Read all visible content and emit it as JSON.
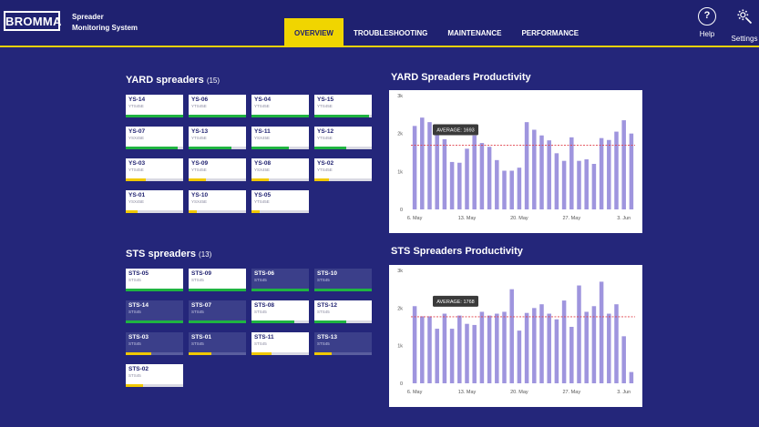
{
  "header": {
    "logo": "BROMMA",
    "app_title_line1": "Spreader",
    "app_title_line2": "Monitoring System",
    "tabs": [
      {
        "label": "OVERVIEW",
        "active": true
      },
      {
        "label": "TROUBLESHOOTING",
        "active": false
      },
      {
        "label": "MAINTENANCE",
        "active": false
      },
      {
        "label": "PERFORMANCE",
        "active": false
      }
    ],
    "help_label": "Help",
    "settings_label": "Settings",
    "help_icon": "question-mark-icon",
    "settings_icon": "gear-icon"
  },
  "colors": {
    "background": "#24267a",
    "accent": "#f0d500",
    "green": "#1fb441",
    "yellow": "#f0c800",
    "bar": "#8e83d8",
    "average_line": "#e0404a"
  },
  "yard": {
    "title": "YARD spreaders",
    "count": "(15)",
    "spreaders": [
      {
        "id": "YS-14",
        "model": "YTS45E",
        "level": 1.0,
        "status": "green",
        "dark": false
      },
      {
        "id": "YS-06",
        "model": "YTS45E",
        "level": 1.0,
        "status": "green",
        "dark": false
      },
      {
        "id": "YS-04",
        "model": "YTS45E",
        "level": 1.0,
        "status": "green",
        "dark": false
      },
      {
        "id": "YS-15",
        "model": "YTS45E",
        "level": 0.95,
        "status": "green",
        "dark": false
      },
      {
        "id": "YS-07",
        "model": "YSX45E",
        "level": 0.9,
        "status": "green",
        "dark": false
      },
      {
        "id": "YS-13",
        "model": "YTS45E",
        "level": 0.75,
        "status": "green",
        "dark": false
      },
      {
        "id": "YS-11",
        "model": "YSX45E",
        "level": 0.65,
        "status": "green",
        "dark": false
      },
      {
        "id": "YS-12",
        "model": "YTS45E",
        "level": 0.55,
        "status": "green",
        "dark": false
      },
      {
        "id": "YS-03",
        "model": "YTS45E",
        "level": 0.35,
        "status": "yellow",
        "dark": false
      },
      {
        "id": "YS-09",
        "model": "YTS45E",
        "level": 0.3,
        "status": "yellow",
        "dark": false
      },
      {
        "id": "YS-08",
        "model": "YSX45E",
        "level": 0.3,
        "status": "yellow",
        "dark": false
      },
      {
        "id": "YS-02",
        "model": "YTS45E",
        "level": 0.25,
        "status": "yellow",
        "dark": false
      },
      {
        "id": "YS-01",
        "model": "YSX45E",
        "level": 0.2,
        "status": "yellow",
        "dark": false
      },
      {
        "id": "YS-10",
        "model": "YSX45E",
        "level": 0.15,
        "status": "yellow",
        "dark": false
      },
      {
        "id": "YS-05",
        "model": "YTS45E",
        "level": 0.15,
        "status": "yellow",
        "dark": false
      }
    ]
  },
  "sts": {
    "title": "STS spreaders",
    "count": "(13)",
    "spreaders": [
      {
        "id": "STS-05",
        "model": "STS45",
        "level": 1.0,
        "status": "green",
        "dark": false
      },
      {
        "id": "STS-09",
        "model": "STS45",
        "level": 1.0,
        "status": "green",
        "dark": false
      },
      {
        "id": "STS-06",
        "model": "STS45",
        "level": 1.0,
        "status": "green",
        "dark": true
      },
      {
        "id": "STS-10",
        "model": "STS45",
        "level": 1.0,
        "status": "green",
        "dark": true
      },
      {
        "id": "STS-14",
        "model": "STS45",
        "level": 1.0,
        "status": "green",
        "dark": true
      },
      {
        "id": "STS-07",
        "model": "STS45",
        "level": 1.0,
        "status": "green",
        "dark": true
      },
      {
        "id": "STS-08",
        "model": "STS45",
        "level": 0.75,
        "status": "green",
        "dark": false
      },
      {
        "id": "STS-12",
        "model": "STS45",
        "level": 0.55,
        "status": "green",
        "dark": false
      },
      {
        "id": "STS-03",
        "model": "STS45",
        "level": 0.45,
        "status": "yellow",
        "dark": true
      },
      {
        "id": "STS-01",
        "model": "STS45",
        "level": 0.4,
        "status": "yellow",
        "dark": true
      },
      {
        "id": "STS-11",
        "model": "STS45",
        "level": 0.35,
        "status": "yellow",
        "dark": false
      },
      {
        "id": "STS-13",
        "model": "STS45",
        "level": 0.3,
        "status": "yellow",
        "dark": true
      },
      {
        "id": "STS-02",
        "model": "STS45",
        "level": 0.3,
        "status": "yellow",
        "dark": false
      }
    ]
  },
  "chart_data": [
    {
      "type": "bar",
      "title": "YARD Spreaders Productivity",
      "xlabel": "",
      "ylabel": "",
      "ylim": [
        0,
        3000
      ],
      "yticks": [
        "0",
        "1k",
        "2k",
        "3k"
      ],
      "xticks": [
        "6. May",
        "13. May",
        "20. May",
        "27. May",
        "3. Jun"
      ],
      "average_label": "AVERAGE: 1693",
      "average": 1693,
      "grid": false,
      "values": [
        2200,
        2420,
        2300,
        2050,
        1850,
        1250,
        1230,
        1600,
        1950,
        1750,
        1650,
        1300,
        1020,
        1020,
        1100,
        2300,
        2100,
        1950,
        1820,
        1480,
        1280,
        1900,
        1280,
        1320,
        1200,
        1880,
        1830,
        2050,
        2350,
        2000
      ]
    },
    {
      "type": "bar",
      "title": "STS Spreaders Productivity",
      "xlabel": "",
      "ylabel": "",
      "ylim": [
        0,
        3000
      ],
      "yticks": [
        "0",
        "1k",
        "2k",
        "3k"
      ],
      "xticks": [
        "6. May",
        "13. May",
        "20. May",
        "27. May",
        "3. Jun"
      ],
      "average_label": "AVERAGE: 1768",
      "average": 1768,
      "grid": false,
      "values": [
        2050,
        1780,
        1780,
        1450,
        1850,
        1450,
        1800,
        1580,
        1550,
        1900,
        1800,
        1850,
        1900,
        2500,
        1400,
        1870,
        2000,
        2100,
        1850,
        1700,
        2200,
        1500,
        2600,
        1900,
        2050,
        2700,
        1850,
        2100,
        1250,
        300
      ]
    }
  ]
}
